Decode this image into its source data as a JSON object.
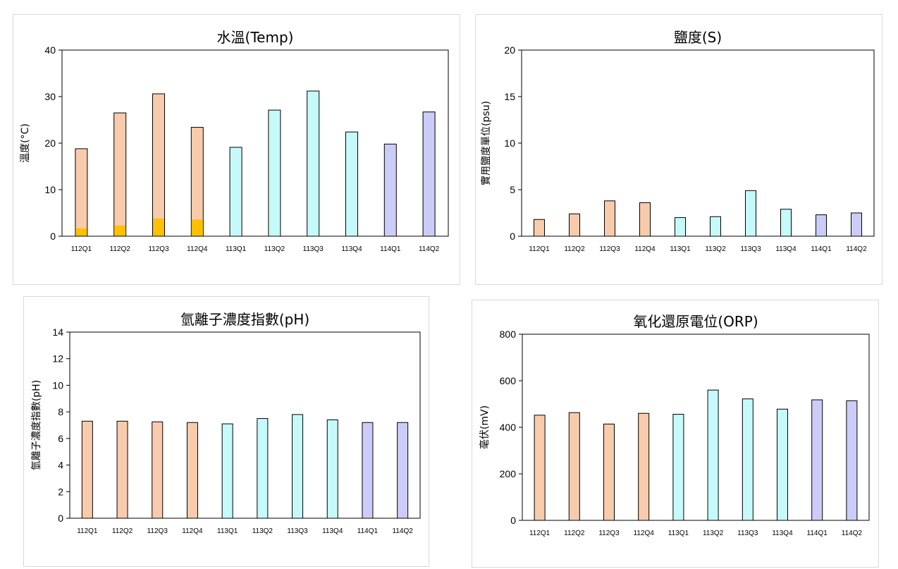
{
  "colors": {
    "c112": "#f8cbad",
    "c113": "#c6fafa",
    "c114": "#ccccf8",
    "inner": "#ffc000",
    "axis": "#000000"
  },
  "chart_data": [
    {
      "type": "bar",
      "title": "水溫(Temp)",
      "ylabel": "溫度(°C)",
      "xlabel": "",
      "categories": [
        "112Q1",
        "112Q2",
        "112Q3",
        "112Q4",
        "113Q1",
        "113Q2",
        "113Q3",
        "113Q4",
        "114Q1",
        "114Q2"
      ],
      "values": [
        18.8,
        26.5,
        30.6,
        23.4,
        19.1,
        27.1,
        31.2,
        22.4,
        19.8,
        26.7
      ],
      "inner_values": [
        1.7,
        2.3,
        3.8,
        3.6,
        null,
        null,
        null,
        null,
        null,
        null
      ],
      "ylim": [
        0,
        40
      ],
      "yticks": [
        0,
        10,
        20,
        30,
        40
      ],
      "grid": false
    },
    {
      "type": "bar",
      "title": "鹽度(S)",
      "ylabel": "實用鹽度單位(psu)",
      "xlabel": "",
      "categories": [
        "112Q1",
        "112Q2",
        "112Q3",
        "112Q4",
        "113Q1",
        "113Q2",
        "113Q3",
        "113Q4",
        "114Q1",
        "114Q2"
      ],
      "values": [
        1.8,
        2.4,
        3.8,
        3.6,
        2.0,
        2.1,
        4.9,
        2.9,
        2.3,
        2.5
      ],
      "ylim": [
        0,
        20
      ],
      "yticks": [
        0,
        5,
        10,
        15,
        20
      ],
      "grid": false
    },
    {
      "type": "bar",
      "title": "氫離子濃度指數(pH)",
      "ylabel": "氫離子濃度指數(pH)",
      "xlabel": "",
      "categories": [
        "112Q1",
        "112Q2",
        "112Q3",
        "112Q4",
        "113Q1",
        "113Q2",
        "113Q3",
        "113Q4",
        "114Q1",
        "114Q2"
      ],
      "values": [
        7.3,
        7.3,
        7.25,
        7.2,
        7.1,
        7.5,
        7.8,
        7.4,
        7.2,
        7.2
      ],
      "ylim": [
        0,
        14
      ],
      "yticks": [
        0,
        2,
        4,
        6,
        8,
        10,
        12,
        14
      ],
      "grid": false
    },
    {
      "type": "bar",
      "title": "氧化還原電位(ORP)",
      "ylabel": "毫伏(mV)",
      "xlabel": "",
      "categories": [
        "112Q1",
        "112Q2",
        "112Q3",
        "112Q4",
        "113Q1",
        "113Q2",
        "113Q3",
        "113Q4",
        "114Q1",
        "114Q2"
      ],
      "values": [
        452,
        463,
        414,
        460,
        456,
        560,
        522,
        478,
        518,
        514
      ],
      "ylim": [
        0,
        800
      ],
      "yticks": [
        0,
        200,
        400,
        600,
        800
      ],
      "grid": false
    }
  ]
}
